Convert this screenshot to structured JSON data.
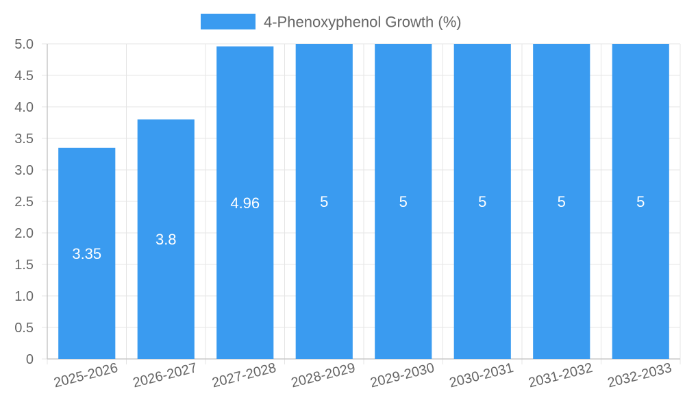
{
  "chart_data": {
    "type": "bar",
    "title": "",
    "xlabel": "",
    "ylabel": "",
    "categories": [
      "2025-2026",
      "2026-2027",
      "2027-2028",
      "2028-2029",
      "2029-2030",
      "2030-2031",
      "2031-2032",
      "2032-2033"
    ],
    "series": [
      {
        "name": "4-Phenoxyphenol Growth (%)",
        "values": [
          3.35,
          3.8,
          4.96,
          5,
          5,
          5,
          5,
          5
        ],
        "data_labels": [
          "3.35",
          "3.8",
          "4.96",
          "5",
          "5",
          "5",
          "5",
          "5"
        ],
        "color": "#3a9bf0"
      }
    ],
    "ylim": [
      0,
      5
    ],
    "yticks": [
      "0",
      "0.5",
      "1.0",
      "1.5",
      "2.0",
      "2.5",
      "3.0",
      "3.5",
      "4.0",
      "4.5",
      "5.0"
    ],
    "grid": true,
    "legend_position": "top-center"
  },
  "colors": {
    "bar": "#3a9bf0",
    "grid": "#e5e5e5",
    "axis": "#c8c8c8",
    "text": "#666666",
    "label": "#ffffff"
  }
}
